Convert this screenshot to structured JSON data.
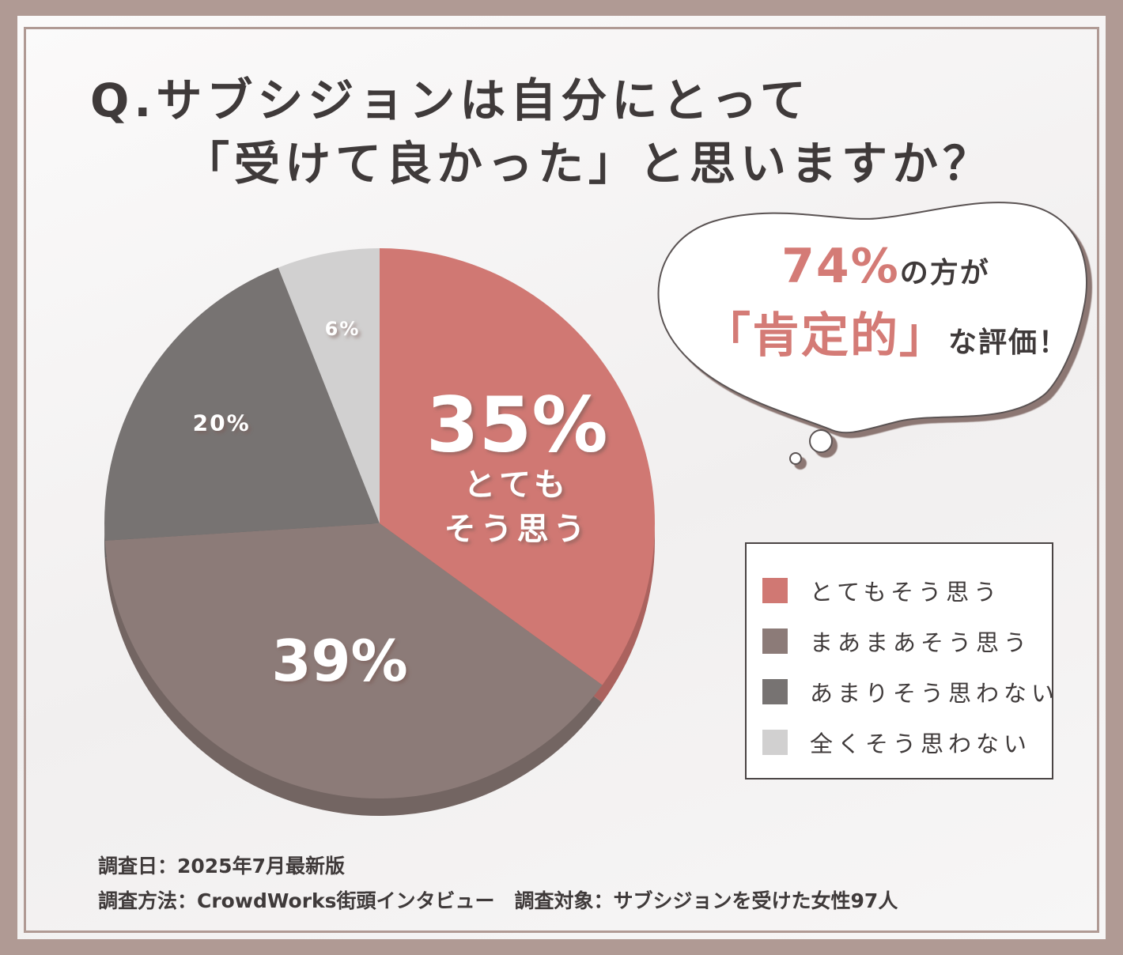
{
  "title": {
    "line1": "Q.サブシジョンは自分にとって",
    "line2": "「受けて良かった」と思いますか？"
  },
  "callout": {
    "percent": "74%",
    "line1_suffix": "の方が",
    "highlight": "「肯定的」",
    "line2_suffix": "な評価！"
  },
  "legend": [
    {
      "label": "とてもそう思う",
      "color": "#d07873"
    },
    {
      "label": "まあまあそう思う",
      "color": "#8c7b78"
    },
    {
      "label": "あまりそう思わない",
      "color": "#777372"
    },
    {
      "label": "全くそう思わない",
      "color": "#d1d0d0"
    }
  ],
  "footer": {
    "line1": "調査日：2025年7月最新版",
    "line2": "調査方法：CrowdWorks街頭インタビュー　調査対象：サブシジョンを受けた女性97人"
  },
  "chart_data": {
    "type": "pie",
    "title": "Q.サブシジョンは自分にとって「受けて良かった」と思いますか？",
    "categories": [
      "とてもそう思う",
      "まあまあそう思う",
      "あまりそう思わない",
      "全くそう思わない"
    ],
    "values": [
      35,
      39,
      20,
      6
    ],
    "labels": [
      "35%",
      "39%",
      "20%",
      "6%"
    ],
    "slice_annotation": {
      "slice": 0,
      "lines": [
        "とても",
        "そう思う"
      ]
    },
    "colors": [
      "#d07873",
      "#8c7b78",
      "#777372",
      "#d1d0d0"
    ],
    "legend_position": "right"
  }
}
